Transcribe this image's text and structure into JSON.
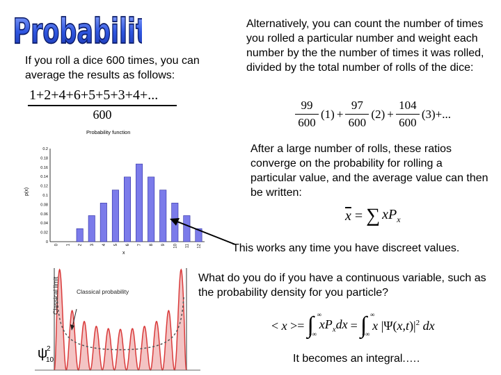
{
  "slide": {
    "title": "Probability",
    "left_intro": "If you roll a dice 600 times, you can average the results as follows:",
    "right_intro": "Alternatively, you can count the number of times you rolled a particular number and weight each number by the the number of times it was rolled, divided by the total number of rolls of the dice:",
    "converge_text": "After a large number of rolls, these ratios converge on the probability for rolling a particular value, and the average value can then be written:",
    "discreet_text": "This works any time you have discreet values.",
    "continuous_text": "What do you do if you have a continuous variable, such as the probability density for you particle?",
    "integral_text": "It becomes an integral.…."
  },
  "equations": {
    "average_numerator": "1+2+4+6+5+5+3+4+...",
    "average_denominator": "600",
    "weighted": {
      "terms": [
        {
          "num": "99",
          "den": "600",
          "val": "(1)"
        },
        {
          "num": "97",
          "den": "600",
          "val": "(2)"
        },
        {
          "num": "104",
          "den": "600",
          "val": "(3)"
        }
      ],
      "tail": "+..."
    },
    "mean": "x̄ = ∑ xPₓ",
    "expectation": "< x > = ∫ xPₓdx = ∫ x|Ψ(x,t)|² dx",
    "lower_limit": "−∞",
    "upper_limit": "∞"
  },
  "chart_data": {
    "type": "bar",
    "title": "Probability function",
    "xlabel": "x",
    "ylabel": "p(x)",
    "categories": [
      "2",
      "3",
      "4",
      "5",
      "6",
      "7",
      "8",
      "9",
      "10",
      "11",
      "12"
    ],
    "values": [
      0.028,
      0.056,
      0.083,
      0.111,
      0.139,
      0.167,
      0.139,
      0.111,
      0.083,
      0.056,
      0.028
    ],
    "ylim": [
      0,
      0.2
    ],
    "yticks": [
      "0",
      "0.02",
      "0.04",
      "0.06",
      "0.08",
      "0.1",
      "0.12",
      "0.14",
      "0.16",
      "0.18",
      "0.2"
    ],
    "xticks": [
      "0",
      "1",
      "2",
      "3",
      "4",
      "5",
      "6",
      "7",
      "8",
      "9",
      "10",
      "11",
      "12"
    ],
    "bar_color": "#7b7bea"
  },
  "density_figure": {
    "label_classical_limit": "Classical limit",
    "label_classical_probability": "Classical probability",
    "psi_label": "ψ",
    "psi_sup": "2",
    "psi_sub": "10",
    "curve_color": "#d93a3a"
  },
  "colors": {
    "title": "#1f3fbf",
    "title_outline": "#0a1a66",
    "arrow": "#000000"
  }
}
